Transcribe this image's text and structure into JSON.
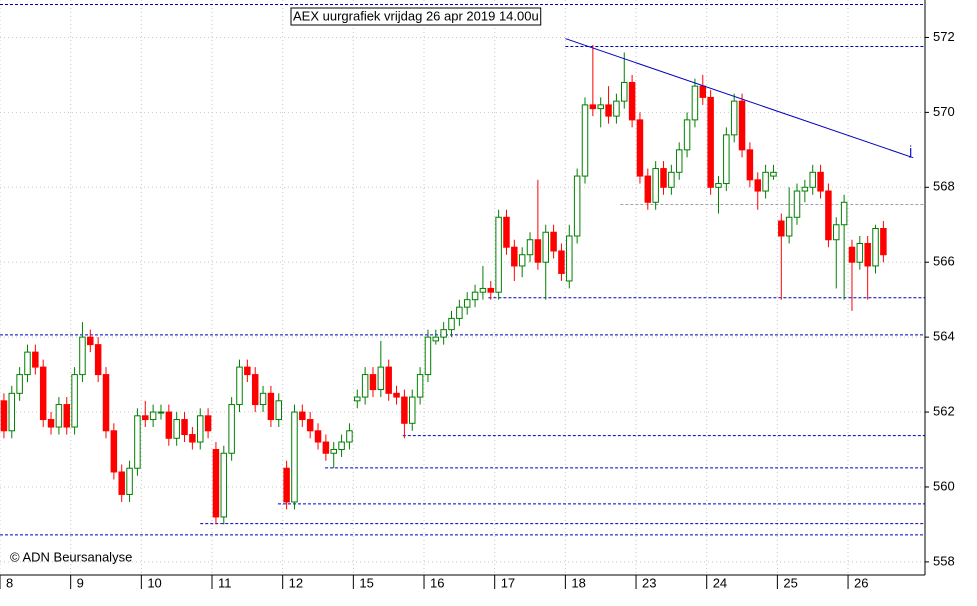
{
  "chart_data": {
    "type": "candlestick",
    "title": "AEX uurgrafiek vrijdag 26 apr 2019 14.00u",
    "source": "© ADN Beursanalyse",
    "up_color": "#008000",
    "down_color": "#ff0000",
    "open": [
      562.3,
      561.5,
      562.5,
      563.0,
      563.6,
      563.2,
      561.8,
      561.6,
      562.2,
      561.6,
      563.0,
      564.0,
      563.8,
      563.0,
      561.5,
      560.4,
      559.8,
      560.5,
      561.9,
      561.8,
      562.0,
      562.0,
      561.3,
      561.8,
      561.4,
      561.2,
      561.9,
      561.0,
      559.2,
      560.9,
      562.2,
      563.2,
      563.0,
      562.2,
      562.5,
      561.8,
      560.5,
      559.6,
      562.0,
      561.8,
      561.5,
      561.2,
      560.9,
      561.0,
      561.2,
      562.3,
      562.4,
      563.0,
      562.6,
      563.2,
      562.5,
      562.4,
      561.7,
      562.4,
      563.0,
      563.9,
      564.0,
      564.2,
      564.5,
      564.8,
      565.0,
      565.2,
      565.3,
      565.2,
      567.2,
      566.4,
      565.9,
      566.2,
      566.6,
      566.0,
      566.8,
      566.3,
      565.5,
      566.7,
      568.3,
      570.2,
      570.1,
      570.2,
      569.9,
      570.3,
      570.8,
      569.8,
      568.3,
      567.6,
      568.5,
      568.0,
      568.4,
      569.0,
      569.8,
      570.7,
      570.4,
      568.0,
      568.1,
      569.4,
      570.3,
      569.0,
      568.2,
      567.9,
      568.3,
      567.1,
      566.7,
      567.2,
      567.9,
      568.0,
      568.4,
      567.9,
      566.6,
      567.0,
      566.4,
      566.0,
      566.5,
      565.9,
      566.9
    ],
    "high": [
      562.5,
      562.7,
      563.2,
      563.8,
      563.8,
      563.4,
      562.0,
      562.4,
      562.4,
      563.2,
      564.4,
      564.2,
      564.0,
      563.2,
      561.7,
      560.6,
      560.7,
      562.1,
      562.3,
      562.2,
      562.2,
      562.2,
      562.0,
      562.0,
      561.6,
      562.1,
      562.1,
      561.2,
      561.1,
      562.4,
      563.4,
      563.4,
      563.2,
      562.7,
      562.7,
      562.5,
      560.7,
      562.2,
      562.2,
      562.0,
      561.7,
      561.4,
      561.2,
      561.4,
      561.7,
      562.6,
      563.2,
      563.2,
      563.9,
      563.4,
      562.7,
      562.6,
      562.6,
      563.2,
      564.2,
      564.2,
      564.4,
      564.7,
      565.0,
      565.2,
      565.4,
      565.9,
      565.5,
      567.4,
      567.4,
      566.6,
      566.4,
      566.8,
      568.2,
      567.0,
      567.0,
      566.5,
      567.0,
      568.5,
      570.4,
      571.8,
      570.4,
      570.7,
      570.5,
      571.6,
      571.0,
      570.0,
      568.5,
      568.7,
      568.7,
      568.6,
      569.2,
      570.0,
      570.9,
      571.0,
      570.6,
      568.3,
      569.6,
      570.5,
      570.5,
      569.2,
      568.4,
      568.6,
      568.6,
      567.3,
      568.0,
      568.1,
      568.2,
      568.6,
      568.6,
      568.1,
      567.2,
      567.8,
      566.6,
      566.7,
      566.7,
      567.0,
      567.1
    ],
    "low": [
      561.3,
      561.3,
      562.3,
      562.8,
      563.0,
      561.6,
      561.4,
      561.4,
      561.4,
      561.4,
      562.8,
      563.6,
      562.8,
      561.3,
      560.2,
      559.6,
      559.6,
      560.3,
      561.6,
      561.6,
      561.8,
      561.1,
      561.1,
      561.2,
      561.0,
      561.0,
      561.3,
      559.0,
      559.0,
      560.7,
      562.0,
      562.8,
      562.0,
      562.0,
      561.6,
      561.6,
      559.4,
      559.4,
      561.6,
      561.3,
      561.0,
      560.7,
      560.5,
      560.8,
      561.0,
      562.1,
      562.2,
      562.4,
      562.4,
      562.3,
      562.2,
      561.3,
      561.5,
      562.2,
      562.8,
      563.8,
      563.8,
      564.0,
      564.3,
      564.6,
      564.8,
      565.0,
      565.0,
      565.0,
      566.2,
      565.5,
      565.6,
      566.0,
      565.8,
      565.0,
      566.1,
      565.5,
      565.3,
      566.5,
      568.1,
      569.9,
      569.6,
      569.7,
      569.7,
      570.1,
      569.6,
      568.1,
      567.4,
      567.4,
      567.8,
      567.8,
      568.2,
      568.8,
      569.6,
      570.2,
      567.8,
      567.3,
      567.9,
      569.2,
      568.8,
      568.0,
      567.4,
      567.7,
      568.2,
      565.0,
      566.5,
      567.0,
      567.6,
      567.8,
      567.7,
      566.4,
      565.3,
      565.0,
      564.7,
      565.8,
      565.0,
      565.7,
      566.0
    ],
    "close": [
      561.5,
      562.5,
      563.0,
      563.6,
      563.2,
      561.8,
      561.6,
      562.2,
      561.6,
      563.0,
      564.0,
      563.8,
      563.0,
      561.5,
      560.4,
      559.8,
      560.5,
      561.9,
      561.8,
      562.0,
      562.0,
      561.3,
      561.8,
      561.4,
      561.2,
      561.9,
      561.5,
      559.2,
      560.9,
      562.2,
      563.2,
      563.0,
      562.2,
      562.5,
      561.8,
      562.3,
      559.6,
      562.0,
      561.8,
      561.5,
      561.2,
      560.9,
      561.0,
      561.2,
      561.5,
      562.4,
      563.0,
      562.6,
      563.2,
      562.5,
      562.4,
      561.7,
      562.4,
      563.0,
      564.0,
      564.0,
      564.2,
      564.5,
      564.8,
      565.0,
      565.2,
      565.3,
      565.2,
      567.2,
      566.4,
      565.9,
      566.2,
      566.6,
      566.0,
      566.8,
      566.3,
      565.7,
      566.7,
      568.3,
      570.2,
      570.1,
      570.2,
      569.9,
      570.3,
      570.8,
      569.8,
      568.3,
      567.6,
      568.5,
      568.0,
      568.4,
      569.0,
      569.8,
      570.7,
      570.4,
      568.0,
      568.1,
      569.4,
      570.3,
      569.0,
      568.2,
      567.9,
      568.4,
      568.4,
      566.7,
      567.2,
      567.9,
      568.0,
      568.4,
      567.9,
      566.6,
      567.0,
      567.6,
      566.0,
      566.5,
      565.9,
      566.9,
      566.2
    ],
    "xlim": [
      -0.5,
      117.3
    ],
    "xticks": [
      {
        "value": -0.5,
        "label": "8"
      },
      {
        "value": 8.5,
        "label": "9"
      },
      {
        "value": 17.5,
        "label": "10"
      },
      {
        "value": 26.5,
        "label": "11"
      },
      {
        "value": 35.5,
        "label": "12"
      },
      {
        "value": 44.5,
        "label": "15"
      },
      {
        "value": 53.5,
        "label": "16"
      },
      {
        "value": 62.5,
        "label": "17"
      },
      {
        "value": 71.5,
        "label": "18"
      },
      {
        "value": 80.5,
        "label": "23"
      },
      {
        "value": 89.5,
        "label": "24"
      },
      {
        "value": 98.5,
        "label": "25"
      },
      {
        "value": 107.5,
        "label": "26"
      }
    ],
    "ylim": [
      557.65,
      573.0
    ],
    "yticks": [
      558,
      560,
      562,
      564,
      566,
      568,
      570,
      572
    ],
    "grid": true,
    "levels": [
      {
        "value": 572.88,
        "start": -0.5,
        "color": "#0000c0"
      },
      {
        "value": 571.76,
        "start": 71.5,
        "color": "#0000c0"
      },
      {
        "value": 567.54,
        "start": 78.5,
        "color": "#a0a0a0"
      },
      {
        "value": 565.05,
        "start": 61.7,
        "color": "#0000c0"
      },
      {
        "value": 564.06,
        "start": -0.5,
        "color": "#0000c0"
      },
      {
        "value": 561.37,
        "start": 50.8,
        "color": "#0000c0"
      },
      {
        "value": 560.51,
        "start": 40.9,
        "color": "#0000c0"
      },
      {
        "value": 559.55,
        "start": 34.9,
        "color": "#0000c0"
      },
      {
        "value": 559.02,
        "start": 25.0,
        "color": "#0000c0"
      },
      {
        "value": 558.72,
        "start": -0.5,
        "color": "#0000c0"
      }
    ],
    "trendline": {
      "x": [
        71.5,
        115.8
      ],
      "y": [
        571.97,
        568.79
      ],
      "label": "j",
      "color": "#0000c0"
    }
  }
}
